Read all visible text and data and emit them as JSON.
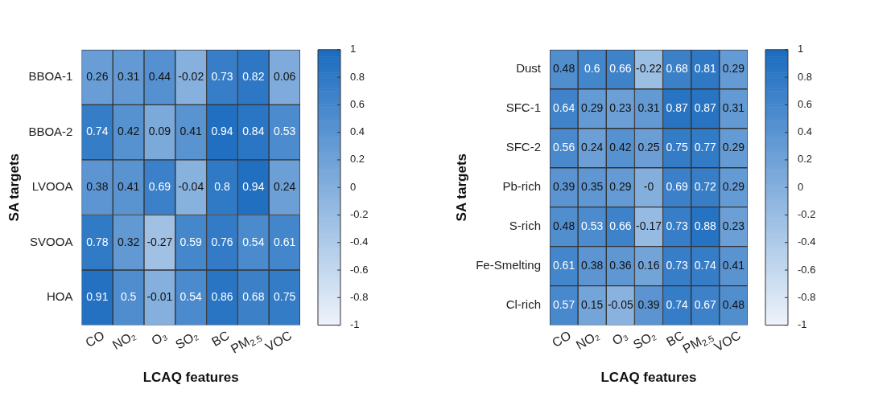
{
  "chart_data": [
    {
      "type": "heatmap",
      "xlabel": "LCAQ features",
      "ylabel": "SA targets",
      "categories": [
        "CO",
        "NO₂",
        "O₃",
        "SO₂",
        "BC",
        "PM$_{2.5}$",
        "VOC"
      ],
      "y_categories": [
        "BBOA-1",
        "BBOA-2",
        "LVOOA",
        "SVOOA",
        "HOA"
      ],
      "cells": [
        [
          0.26,
          0.31,
          0.44,
          -0.02,
          0.73,
          0.82,
          0.06
        ],
        [
          0.74,
          0.42,
          0.09,
          0.41,
          0.94,
          0.84,
          0.53
        ],
        [
          0.38,
          0.41,
          0.69,
          -0.04,
          0.8,
          0.94,
          0.24
        ],
        [
          0.78,
          0.32,
          -0.27,
          0.59,
          0.76,
          0.54,
          0.61
        ],
        [
          0.91,
          0.5,
          -0.01,
          0.54,
          0.86,
          0.68,
          0.75
        ]
      ],
      "data_labels": true,
      "clim": [
        -1,
        1
      ],
      "cticks": [
        -1,
        -0.8,
        -0.6,
        -0.4,
        -0.2,
        0,
        0.2,
        0.4,
        0.6,
        0.8,
        1
      ]
    },
    {
      "type": "heatmap",
      "xlabel": "LCAQ features",
      "ylabel": "SA targets",
      "categories": [
        "CO",
        "NO₂",
        "O₃",
        "SO₂",
        "BC",
        "PM$_{2.5}$",
        "VOC"
      ],
      "y_categories": [
        "Dust",
        "SFC-1",
        "SFC-2",
        "Pb-rich",
        "S-rich",
        "Fe-Smelting",
        "Cl-rich"
      ],
      "cells": [
        [
          0.48,
          0.6,
          0.66,
          -0.22,
          0.68,
          0.81,
          0.29
        ],
        [
          0.64,
          0.29,
          0.23,
          0.31,
          0.87,
          0.87,
          0.31
        ],
        [
          0.56,
          0.24,
          0.42,
          0.25,
          0.75,
          0.77,
          0.29
        ],
        [
          0.39,
          0.35,
          0.29,
          0,
          0.69,
          0.72,
          0.29
        ],
        [
          0.48,
          0.53,
          0.66,
          -0.17,
          0.73,
          0.88,
          0.23
        ],
        [
          0.61,
          0.38,
          0.36,
          0.16,
          0.73,
          0.74,
          0.41
        ],
        [
          0.57,
          0.15,
          -0.05,
          0.39,
          0.74,
          0.67,
          0.48
        ]
      ],
      "cell_labels": [
        [
          "0.48",
          "0.6",
          "0.66",
          "-0.22",
          "0.68",
          "0.81",
          "0.29"
        ],
        [
          "0.64",
          "0.29",
          "0.23",
          "0.31",
          "0.87",
          "0.87",
          "0.31"
        ],
        [
          "0.56",
          "0.24",
          "0.42",
          "0.25",
          "0.75",
          "0.77",
          "0.29"
        ],
        [
          "0.39",
          "0.35",
          "0.29",
          "-0",
          "0.69",
          "0.72",
          "0.29"
        ],
        [
          "0.48",
          "0.53",
          "0.66",
          "-0.17",
          "0.73",
          "0.88",
          "0.23"
        ],
        [
          "0.61",
          "0.38",
          "0.36",
          "0.16",
          "0.73",
          "0.74",
          "0.41"
        ],
        [
          "0.57",
          "0.15",
          "-0.05",
          "0.39",
          "0.74",
          "0.67",
          "0.48"
        ]
      ],
      "data_labels": true,
      "clim": [
        -1,
        1
      ],
      "cticks": [
        -1,
        -0.8,
        -0.6,
        -0.4,
        -0.2,
        0,
        0.2,
        0.4,
        0.6,
        0.8,
        1
      ]
    }
  ]
}
